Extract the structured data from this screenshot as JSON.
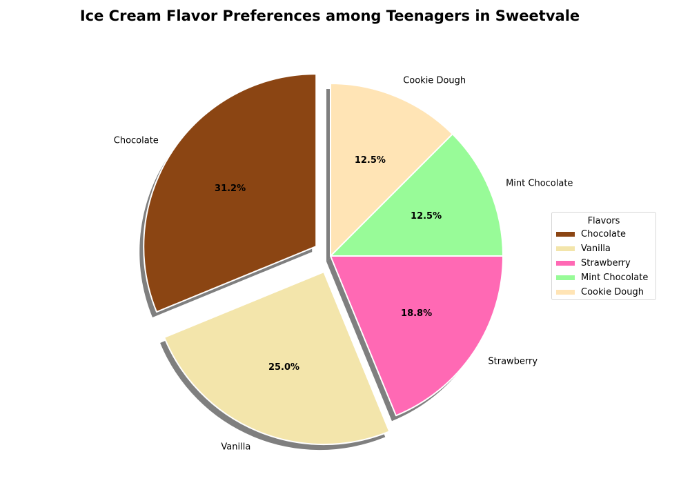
{
  "chart_data": {
    "type": "pie",
    "title": "Ice Cream Flavor Preferences among Teenagers in Sweetvale",
    "categories": [
      "Chocolate",
      "Vanilla",
      "Strawberry",
      "Mint Chocolate",
      "Cookie Dough"
    ],
    "values": [
      31.2,
      25.0,
      18.8,
      12.5,
      12.5
    ],
    "percent_labels": [
      "31.2%",
      "25.0%",
      "18.8%",
      "12.5%",
      "12.5%"
    ],
    "colors": [
      "#8B4513",
      "#F3E5AB",
      "#FF69B4",
      "#98FB98",
      "#FFE4B5"
    ],
    "exploded": [
      true,
      true,
      false,
      false,
      false
    ],
    "shadow": true,
    "start_angle_deg": 90,
    "direction": "counterclockwise",
    "legend": {
      "title": "Flavors",
      "placement": "center-right",
      "entries": [
        "Chocolate",
        "Vanilla",
        "Strawberry",
        "Mint Chocolate",
        "Cookie Dough"
      ]
    }
  }
}
